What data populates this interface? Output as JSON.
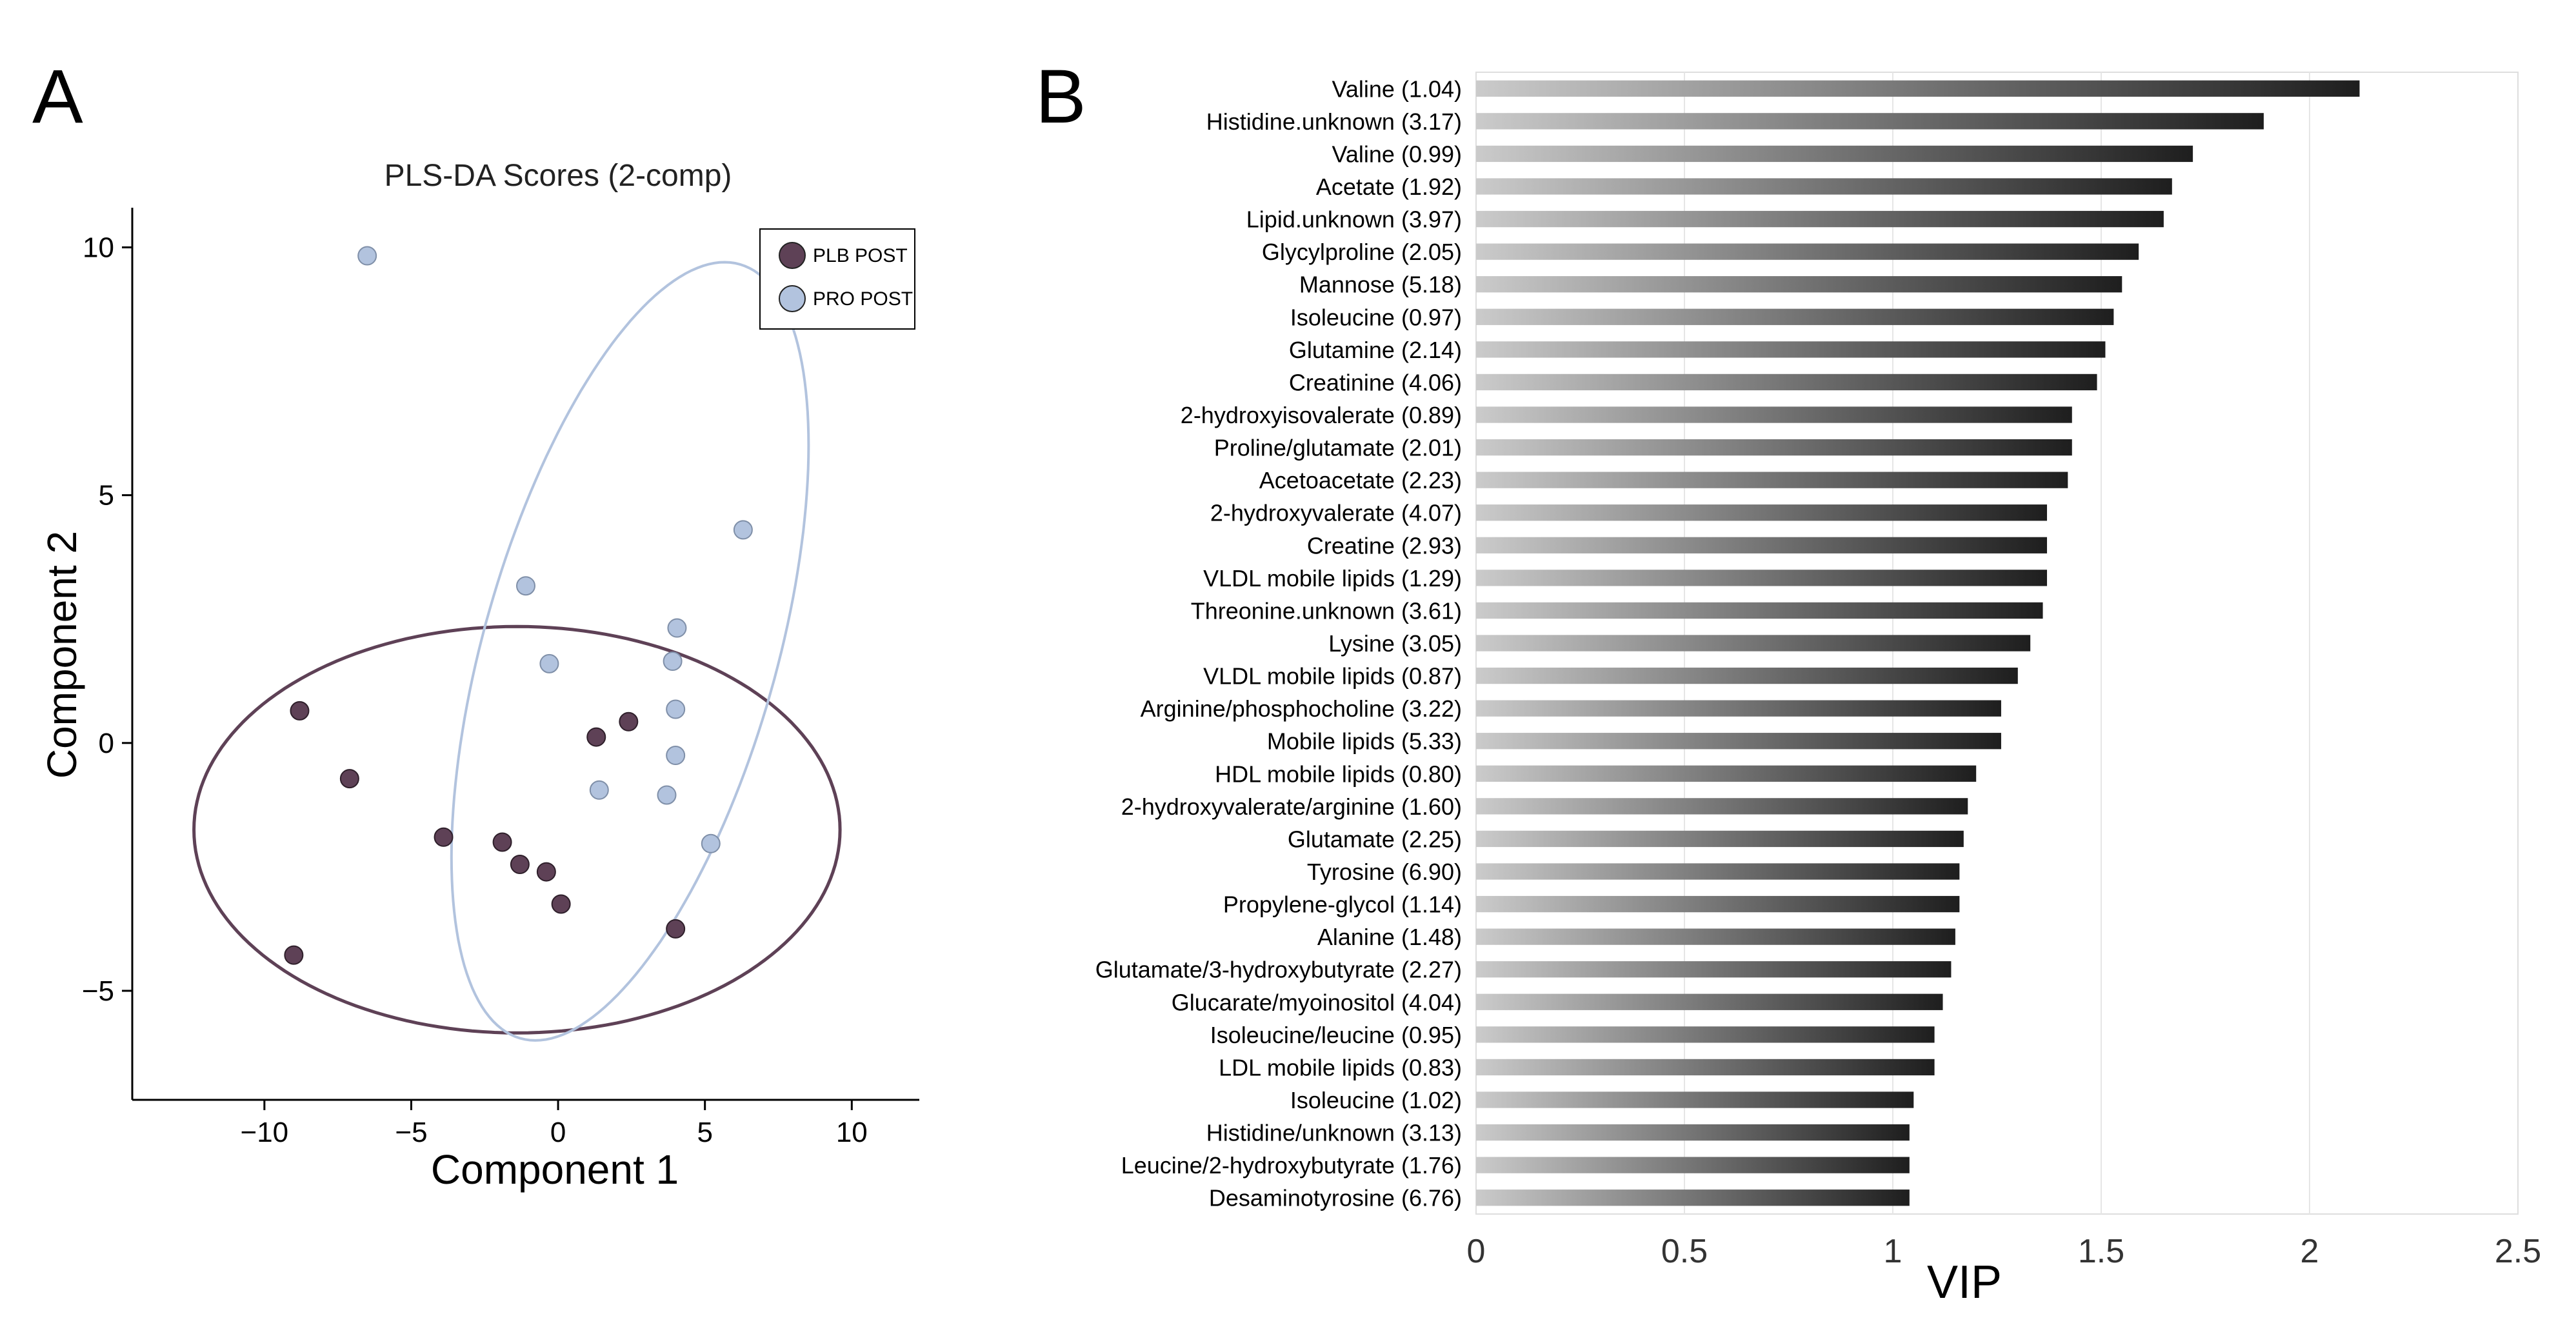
{
  "panel_labels": [
    "A",
    "B"
  ],
  "chart_data": [
    {
      "type": "scatter",
      "title": "PLS-DA Scores (2-comp)",
      "xlabel": "Component 1",
      "ylabel": "Component 2",
      "xlim": [
        -14.5,
        12.3
      ],
      "ylim": [
        -7.2,
        10.8
      ],
      "x_ticks": [
        -10,
        -5,
        0,
        5,
        10
      ],
      "y_ticks": [
        10,
        5,
        0,
        -5
      ],
      "tick_format": {
        "negative_sign": "−"
      },
      "grid": false,
      "legend_position": "top-right",
      "series": [
        {
          "name": "PLB POST",
          "color": "#5e4156",
          "points": [
            [
              -8.8,
              0.65
            ],
            [
              -7.1,
              -0.72
            ],
            [
              -3.9,
              -1.9
            ],
            [
              -1.9,
              -2.0
            ],
            [
              -1.3,
              -2.45
            ],
            [
              -0.4,
              -2.6
            ],
            [
              0.1,
              -3.25
            ],
            [
              1.3,
              0.12
            ],
            [
              2.4,
              0.43
            ],
            [
              4.0,
              -3.75
            ],
            [
              -9.0,
              -4.28
            ]
          ],
          "ellipse": {
            "center": [
              -1.4,
              -1.75
            ],
            "semi_axes": [
              11.0,
              4.1
            ],
            "angle_deg": 0
          }
        },
        {
          "name": "PRO POST",
          "color": "#b2c3de",
          "points": [
            [
              -6.5,
              9.83
            ],
            [
              -1.1,
              3.17
            ],
            [
              -0.3,
              1.6
            ],
            [
              1.4,
              -0.95
            ],
            [
              3.7,
              -1.05
            ],
            [
              3.9,
              1.65
            ],
            [
              4.05,
              2.32
            ],
            [
              4.0,
              0.68
            ],
            [
              4.0,
              -0.25
            ],
            [
              5.2,
              -2.03
            ],
            [
              6.3,
              4.3
            ]
          ],
          "ellipse": {
            "center": [
              2.45,
              1.85
            ],
            "semi_axes": [
              8.8,
              4.6
            ],
            "angle_deg": 58
          }
        }
      ]
    },
    {
      "type": "bar",
      "orientation": "horizontal",
      "xlabel": "VIP",
      "xlim": [
        0,
        2.5
      ],
      "x_ticks": [
        0,
        0.5,
        1,
        1.5,
        2,
        2.5
      ],
      "x_tick_labels": [
        "0",
        "0.5",
        "1",
        "1.5",
        "2",
        "2.5"
      ],
      "grid": true,
      "bar_gradient": [
        "#cbcbcb",
        "#1e1e1e"
      ],
      "categories": [
        "Valine (1.04)",
        "Histidine.unknown (3.17)",
        "Valine (0.99)",
        "Acetate (1.92)",
        "Lipid.unknown (3.97)",
        "Glycylproline (2.05)",
        "Mannose (5.18)",
        "Isoleucine (0.97)",
        "Glutamine (2.14)",
        "Creatinine (4.06)",
        "2-hydroxyisovalerate (0.89)",
        "Proline/glutamate (2.01)",
        "Acetoacetate (2.23)",
        "2-hydroxyvalerate (4.07)",
        "Creatine (2.93)",
        "VLDL mobile lipids (1.29)",
        "Threonine.unknown (3.61)",
        "Lysine (3.05)",
        "VLDL mobile lipids (0.87)",
        "Arginine/phosphocholine (3.22)",
        "Mobile lipids (5.33)",
        "HDL mobile lipids (0.80)",
        "2-hydroxyvalerate/arginine (1.60)",
        "Glutamate (2.25)",
        "Tyrosine (6.90)",
        "Propylene-glycol (1.14)",
        "Alanine (1.48)",
        "Glutamate/3-hydroxybutyrate (2.27)",
        "Glucarate/myoinositol (4.04)",
        "Isoleucine/leucine (0.95)",
        "LDL mobile lipids (0.83)",
        "Isoleucine (1.02)",
        "Histidine/unknown (3.13)",
        "Leucine/2-hydroxybutyrate (1.76)",
        "Desaminotyrosine (6.76)"
      ],
      "values": [
        2.12,
        1.89,
        1.72,
        1.67,
        1.65,
        1.59,
        1.55,
        1.53,
        1.51,
        1.49,
        1.43,
        1.43,
        1.42,
        1.37,
        1.37,
        1.37,
        1.36,
        1.33,
        1.3,
        1.26,
        1.26,
        1.2,
        1.18,
        1.17,
        1.16,
        1.16,
        1.15,
        1.14,
        1.12,
        1.1,
        1.1,
        1.05,
        1.04,
        1.04,
        1.04
      ]
    }
  ]
}
